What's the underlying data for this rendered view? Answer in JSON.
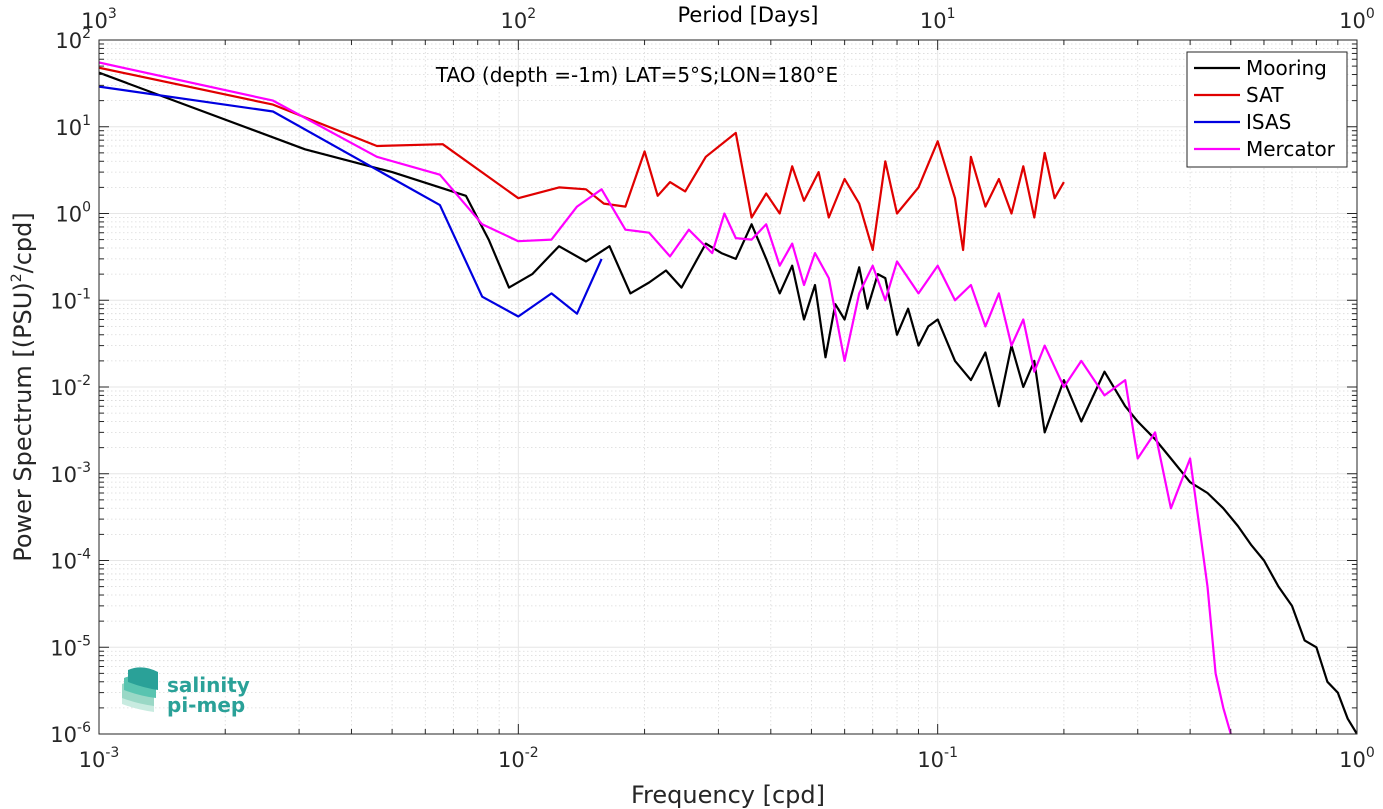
{
  "chart_data": {
    "type": "line",
    "title": "TAO (depth =-1m) LAT=5°S;LON=180°E",
    "xlabel": "Frequency [cpd]",
    "ylabel_main": "Power Spectrum [(PSU)",
    "ylabel_sup": "2",
    "ylabel_end": "/cpd]",
    "x2label": "Period [Days]",
    "xscale": "log",
    "yscale": "log",
    "xlim": [
      0.001,
      1
    ],
    "ylim": [
      1e-06,
      100
    ],
    "grid": true,
    "legend_position": "top-right",
    "xticks": [
      {
        "base": "10",
        "exp": "-3",
        "value": 0.001
      },
      {
        "base": "10",
        "exp": "-2",
        "value": 0.01
      },
      {
        "base": "10",
        "exp": "-1",
        "value": 0.1
      },
      {
        "base": "10",
        "exp": "0",
        "value": 1
      }
    ],
    "x2ticks": [
      {
        "base": "10",
        "exp": "3",
        "value": 0.001
      },
      {
        "base": "10",
        "exp": "2",
        "value": 0.01
      },
      {
        "base": "10",
        "exp": "1",
        "value": 0.1
      },
      {
        "base": "10",
        "exp": "0",
        "value": 1
      }
    ],
    "yticks": [
      {
        "base": "10",
        "exp": "-6",
        "value": 1e-06
      },
      {
        "base": "10",
        "exp": "-5",
        "value": 1e-05
      },
      {
        "base": "10",
        "exp": "-4",
        "value": 0.0001
      },
      {
        "base": "10",
        "exp": "-3",
        "value": 0.001
      },
      {
        "base": "10",
        "exp": "-2",
        "value": 0.01
      },
      {
        "base": "10",
        "exp": "-1",
        "value": 0.1
      },
      {
        "base": "10",
        "exp": "0",
        "value": 1
      },
      {
        "base": "10",
        "exp": "1",
        "value": 10
      },
      {
        "base": "10",
        "exp": "2",
        "value": 100
      }
    ],
    "series": [
      {
        "name": "Mooring",
        "color": "#000000",
        "x": [
          0.001,
          0.0031,
          0.005,
          0.0065,
          0.0075,
          0.0085,
          0.0095,
          0.0108,
          0.0125,
          0.0145,
          0.0165,
          0.0185,
          0.0205,
          0.0225,
          0.0245,
          0.028,
          0.0305,
          0.033,
          0.036,
          0.039,
          0.042,
          0.045,
          0.048,
          0.051,
          0.054,
          0.057,
          0.06,
          0.065,
          0.068,
          0.072,
          0.075,
          0.08,
          0.085,
          0.09,
          0.095,
          0.1,
          0.11,
          0.12,
          0.13,
          0.14,
          0.15,
          0.16,
          0.17,
          0.18,
          0.2,
          0.22,
          0.25,
          0.28,
          0.3,
          0.33,
          0.36,
          0.4,
          0.44,
          0.48,
          0.52,
          0.56,
          0.6,
          0.65,
          0.7,
          0.75,
          0.8,
          0.85,
          0.9,
          0.95,
          1.0
        ],
        "y": [
          42,
          5.5,
          3.0,
          2.0,
          1.6,
          0.5,
          0.14,
          0.2,
          0.42,
          0.28,
          0.42,
          0.12,
          0.16,
          0.22,
          0.14,
          0.45,
          0.35,
          0.3,
          0.75,
          0.3,
          0.12,
          0.25,
          0.06,
          0.15,
          0.022,
          0.09,
          0.06,
          0.24,
          0.08,
          0.2,
          0.18,
          0.04,
          0.08,
          0.03,
          0.05,
          0.06,
          0.02,
          0.012,
          0.025,
          0.006,
          0.03,
          0.01,
          0.02,
          0.003,
          0.012,
          0.004,
          0.015,
          0.006,
          0.004,
          0.0025,
          0.0015,
          0.0008,
          0.0006,
          0.0004,
          0.00025,
          0.00015,
          0.0001,
          5e-05,
          3e-05,
          1.2e-05,
          1e-05,
          4e-06,
          3e-06,
          1.5e-06,
          1e-06
        ]
      },
      {
        "name": "SAT",
        "color": "#e00000",
        "x": [
          0.001,
          0.0026,
          0.0046,
          0.0066,
          0.01,
          0.0125,
          0.0145,
          0.016,
          0.018,
          0.02,
          0.0215,
          0.023,
          0.025,
          0.028,
          0.033,
          0.036,
          0.039,
          0.042,
          0.045,
          0.048,
          0.052,
          0.055,
          0.06,
          0.065,
          0.07,
          0.075,
          0.08,
          0.09,
          0.1,
          0.11,
          0.115,
          0.12,
          0.13,
          0.14,
          0.15,
          0.16,
          0.17,
          0.18,
          0.19,
          0.2
        ],
        "y": [
          48,
          18,
          6,
          6.3,
          1.5,
          2.0,
          1.9,
          1.3,
          1.2,
          5.2,
          1.6,
          2.3,
          1.8,
          4.5,
          8.5,
          0.9,
          1.7,
          1.0,
          3.5,
          1.4,
          3.0,
          0.9,
          2.5,
          1.3,
          0.38,
          4.0,
          1.0,
          2.0,
          6.8,
          1.5,
          0.38,
          4.5,
          1.2,
          2.5,
          1.0,
          3.5,
          0.9,
          5.0,
          1.5,
          2.3
        ]
      },
      {
        "name": "ISAS",
        "color": "#0000e0",
        "x": [
          0.001,
          0.0026,
          0.0065,
          0.0082,
          0.01,
          0.012,
          0.0138,
          0.0158
        ],
        "y": [
          29,
          15,
          1.25,
          0.11,
          0.065,
          0.12,
          0.07,
          0.3
        ]
      },
      {
        "name": "Mercator",
        "color": "#ff00ff",
        "x": [
          0.001,
          0.0026,
          0.0046,
          0.0065,
          0.0082,
          0.01,
          0.012,
          0.0138,
          0.0158,
          0.018,
          0.0205,
          0.023,
          0.0255,
          0.029,
          0.031,
          0.033,
          0.036,
          0.039,
          0.042,
          0.045,
          0.048,
          0.051,
          0.055,
          0.06,
          0.065,
          0.07,
          0.075,
          0.08,
          0.09,
          0.1,
          0.11,
          0.12,
          0.13,
          0.14,
          0.15,
          0.16,
          0.17,
          0.18,
          0.2,
          0.22,
          0.25,
          0.28,
          0.3,
          0.33,
          0.36,
          0.4,
          0.44,
          0.46,
          0.48,
          0.5
        ],
        "y": [
          55,
          20,
          4.5,
          2.8,
          0.75,
          0.48,
          0.5,
          1.2,
          1.9,
          0.65,
          0.6,
          0.32,
          0.65,
          0.35,
          1.0,
          0.52,
          0.5,
          0.75,
          0.25,
          0.45,
          0.15,
          0.35,
          0.18,
          0.02,
          0.12,
          0.25,
          0.1,
          0.28,
          0.12,
          0.25,
          0.1,
          0.15,
          0.05,
          0.12,
          0.03,
          0.06,
          0.015,
          0.03,
          0.01,
          0.02,
          0.008,
          0.012,
          0.0015,
          0.003,
          0.0004,
          0.0015,
          5e-05,
          5e-06,
          2e-06,
          1e-06
        ]
      }
    ]
  },
  "logo": {
    "line1": "salinity",
    "line2": "pi-mep",
    "colors": [
      "#2aa198",
      "#59c4b0",
      "#9ad8c6",
      "#c8ebe0"
    ]
  }
}
